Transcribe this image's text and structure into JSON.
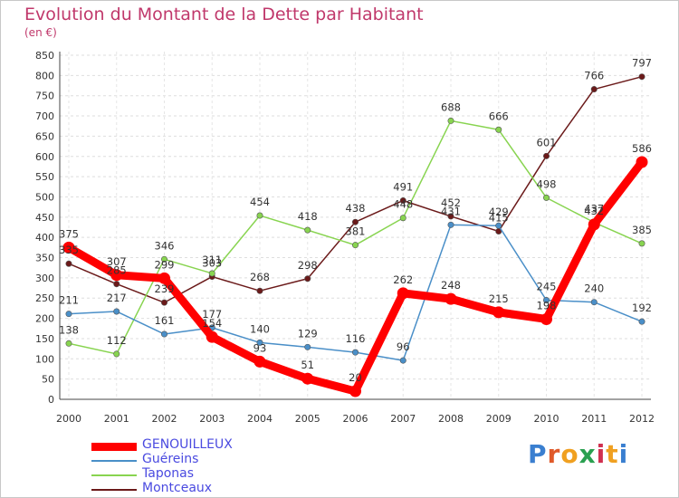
{
  "title": "Evolution du Montant de la Dette par Habitant",
  "subtitle": "(en €)",
  "brand": "Proxiti",
  "chart_data": {
    "type": "line",
    "x": [
      "2000",
      "2001",
      "2002",
      "2003",
      "2004",
      "2005",
      "2006",
      "2007",
      "2008",
      "2009",
      "2010",
      "2011",
      "2012"
    ],
    "ylim": [
      0,
      850
    ],
    "yticks": [
      0,
      50,
      100,
      150,
      200,
      250,
      300,
      350,
      400,
      450,
      500,
      550,
      600,
      650,
      700,
      750,
      800,
      850
    ],
    "grid": true,
    "legend": "bottom-left",
    "series": [
      {
        "name": "GENOUILLEUX",
        "color": "#ff0000",
        "values": [
          375,
          307,
          299,
          154,
          93,
          51,
          20,
          262,
          248,
          215,
          198,
          432,
          586
        ]
      },
      {
        "name": "Guéreins",
        "color": "#4a8fc8",
        "values": [
          211,
          217,
          161,
          177,
          140,
          129,
          116,
          96,
          431,
          429,
          245,
          240,
          192
        ]
      },
      {
        "name": "Taponas",
        "color": "#88d450",
        "values": [
          138,
          112,
          346,
          311,
          454,
          418,
          381,
          448,
          688,
          666,
          498,
          437,
          385
        ]
      },
      {
        "name": "Montceaux",
        "color": "#6b1a1a",
        "values": [
          335,
          285,
          239,
          303,
          268,
          298,
          438,
          491,
          452,
          415,
          601,
          766,
          797
        ]
      }
    ]
  }
}
